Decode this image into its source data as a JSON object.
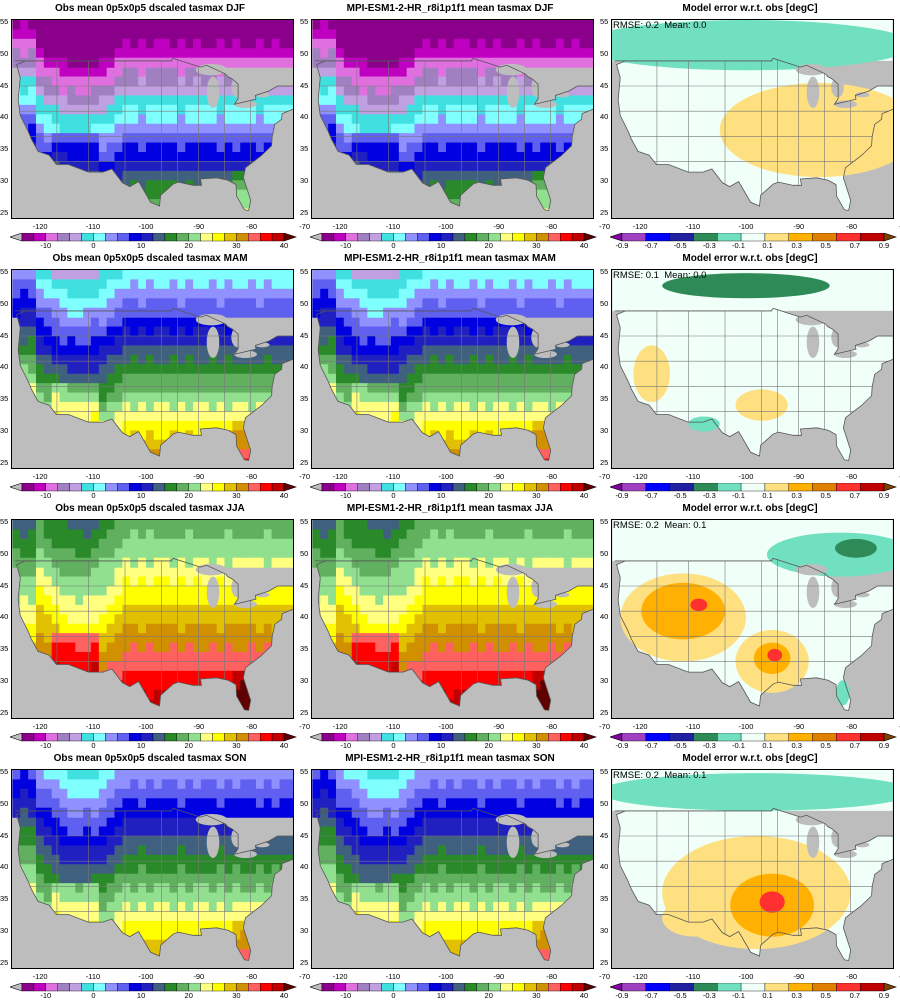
{
  "rows": [
    {
      "season": "DJF",
      "obs_title": "Obs mean 0p5x0p5 dscaled tasmax DJF",
      "model_title": "MPI-ESM1-2-HR_r8i1p1f1 mean tasmax DJF",
      "err_title": "Model error w.r.t. obs [degC]",
      "rmse_text": "RMSE: 0.2  Mean: 0.0",
      "rmse": 0.2,
      "mean": 0.0
    },
    {
      "season": "MAM",
      "obs_title": "Obs mean 0p5x0p5 dscaled tasmax MAM",
      "model_title": "MPI-ESM1-2-HR_r8i1p1f1 mean tasmax MAM",
      "err_title": "Model error w.r.t. obs [degC]",
      "rmse_text": "RMSE: 0.1  Mean: 0.0",
      "rmse": 0.1,
      "mean": 0.0
    },
    {
      "season": "JJA",
      "obs_title": "Obs mean 0p5x0p5 dscaled tasmax JJA",
      "model_title": "MPI-ESM1-2-HR_r8i1p1f1 mean tasmax JJA",
      "err_title": "Model error w.r.t. obs [degC]",
      "rmse_text": "RMSE: 0.2  Mean: 0.1",
      "rmse": 0.2,
      "mean": 0.1
    },
    {
      "season": "SON",
      "obs_title": "Obs mean 0p5x0p5 dscaled tasmax SON",
      "model_title": "MPI-ESM1-2-HR_r8i1p1f1 mean tasmax SON",
      "err_title": "Model error w.r.t. obs [degC]",
      "rmse_text": "RMSE: 0.2  Mean: 0.1",
      "rmse": 0.2,
      "mean": 0.1
    }
  ],
  "axes": {
    "lat_ticks": [
      "55",
      "50",
      "45",
      "40",
      "35",
      "30",
      "25"
    ],
    "lon_ticks": [
      "-120",
      "-110",
      "-100",
      "-90",
      "-80",
      "-70"
    ]
  },
  "colorbars": {
    "temp": {
      "labels": [
        "-10",
        "0",
        "10",
        "20",
        "30",
        "40"
      ],
      "colors": [
        "#bdbdbd",
        "#8b008b",
        "#c000c0",
        "#e070e0",
        "#a080c0",
        "#c0a0e0",
        "#40e0e0",
        "#80ffff",
        "#9090ff",
        "#6060f0",
        "#0000e0",
        "#2020c0",
        "#406080",
        "#2a8a2a",
        "#60b060",
        "#90e090",
        "#ffff80",
        "#ffff00",
        "#e0c000",
        "#d09000",
        "#ff6060",
        "#ff0000",
        "#c00000",
        "#600000"
      ]
    },
    "err": {
      "labels": [
        "-0.9",
        "-0.7",
        "-0.5",
        "-0.3",
        "-0.1",
        "0.1",
        "0.3",
        "0.5",
        "0.7",
        "0.9"
      ],
      "colors": [
        "#8000a0",
        "#a040c0",
        "#0000ff",
        "#2020a0",
        "#2e8b57",
        "#70e0c0",
        "#f0fff8",
        "#ffe080",
        "#ffb000",
        "#e08000",
        "#ff3030",
        "#c00000",
        "#804000"
      ]
    }
  },
  "map_data": {
    "projection": "Lat/Lon",
    "region": "CONUS",
    "colors": {
      "ocean": "#bdbdbd",
      "zero_band": "#f0fff8"
    }
  }
}
